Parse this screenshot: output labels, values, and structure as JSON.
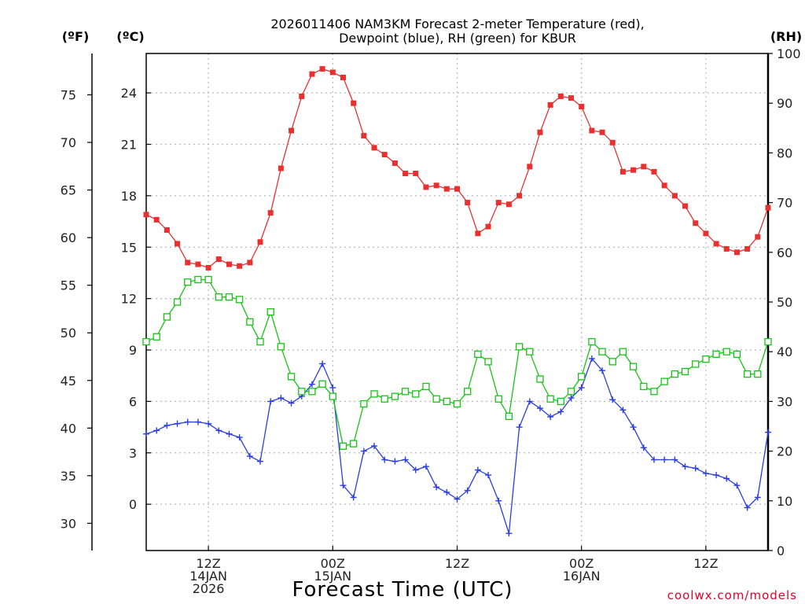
{
  "title": {
    "line1": "2026011406 NAM3KM Forecast 2-meter Temperature (red),",
    "line2": "Dewpoint (blue), RH (green) for KBUR"
  },
  "axis_units": {
    "fahrenheit": "(ºF)",
    "celsius": "(ºC)",
    "rh": "(RH)"
  },
  "xlabel": "Forecast Time (UTC)",
  "credit": "coolwx.com/models",
  "colors": {
    "temperature": "#e83030",
    "dewpoint": "#2a3ee0",
    "rh": "#16c416"
  },
  "chart_data": {
    "type": "line",
    "title": "2026011406 NAM3KM Forecast 2-meter Temperature (red), Dewpoint (blue), RH (green) for KBUR",
    "xlabel": "Forecast Time (UTC)",
    "x_units": "hours from 2026-01-14 06Z",
    "x": [
      0,
      1,
      2,
      3,
      4,
      5,
      6,
      7,
      8,
      9,
      10,
      11,
      12,
      13,
      14,
      15,
      16,
      17,
      18,
      19,
      20,
      21,
      22,
      23,
      24,
      25,
      26,
      27,
      28,
      29,
      30,
      31,
      32,
      33,
      34,
      35,
      36,
      37,
      38,
      39,
      40,
      41,
      42,
      43,
      44,
      45,
      46,
      47,
      48,
      49,
      50,
      51,
      52,
      53,
      54,
      55,
      56,
      57,
      58,
      59,
      60
    ],
    "xlim": [
      0,
      60
    ],
    "x_ticks": [
      {
        "x": 6,
        "label": [
          "12Z",
          "14JAN",
          "2026"
        ]
      },
      {
        "x": 18,
        "label": [
          "00Z",
          "15JAN"
        ]
      },
      {
        "x": 30,
        "label": [
          "12Z"
        ]
      },
      {
        "x": 42,
        "label": [
          "00Z",
          "16JAN"
        ]
      },
      {
        "x": 54,
        "label": [
          "12Z"
        ]
      }
    ],
    "celsius_axis": {
      "ylim": [
        -2.7,
        26.3
      ],
      "ticks": [
        0,
        3,
        6,
        9,
        12,
        15,
        18,
        21,
        24
      ]
    },
    "fahrenheit_axis": {
      "ticks": [
        30,
        35,
        40,
        45,
        50,
        55,
        60,
        65,
        70,
        75
      ]
    },
    "rh_axis": {
      "ylim": [
        0,
        100
      ],
      "ticks": [
        0,
        10,
        20,
        30,
        40,
        50,
        60,
        70,
        80,
        90,
        100
      ]
    },
    "grid": true,
    "series": [
      {
        "name": "Temperature",
        "axis": "celsius",
        "marker": "filled-square",
        "values": [
          16.9,
          16.6,
          16.0,
          15.2,
          14.1,
          14.0,
          13.8,
          14.3,
          14.0,
          13.9,
          14.1,
          15.3,
          17.0,
          19.6,
          21.8,
          23.8,
          25.1,
          25.4,
          25.2,
          24.9,
          23.4,
          21.5,
          20.8,
          20.4,
          19.9,
          19.3,
          19.3,
          18.5,
          18.6,
          18.4,
          18.4,
          17.6,
          15.8,
          16.2,
          17.6,
          17.5,
          18.0,
          19.7,
          21.7,
          23.3,
          23.8,
          23.7,
          23.2,
          21.8,
          21.7,
          21.1,
          19.4,
          19.5,
          19.7,
          19.4,
          18.6,
          18.0,
          17.4,
          16.4,
          15.8,
          15.2,
          14.9,
          14.7,
          14.9,
          15.6,
          17.3
        ]
      },
      {
        "name": "Dewpoint",
        "axis": "celsius",
        "marker": "plus",
        "values": [
          4.1,
          4.3,
          4.6,
          4.7,
          4.8,
          4.8,
          4.7,
          4.3,
          4.1,
          3.9,
          2.8,
          2.5,
          6.0,
          6.2,
          5.9,
          6.3,
          7.0,
          8.2,
          6.8,
          1.1,
          0.4,
          3.1,
          3.4,
          2.6,
          2.5,
          2.6,
          2.0,
          2.2,
          1.0,
          0.7,
          0.3,
          0.8,
          2.0,
          1.7,
          0.2,
          -1.7,
          4.5,
          6.0,
          5.6,
          5.1,
          5.4,
          6.2,
          6.8,
          8.5,
          7.8,
          6.1,
          5.5,
          4.5,
          3.3,
          2.6,
          2.6,
          2.6,
          2.2,
          2.1,
          1.8,
          1.7,
          1.5,
          1.1,
          -0.2,
          0.4,
          4.2
        ]
      },
      {
        "name": "RH",
        "axis": "rh",
        "marker": "open-square",
        "values": [
          42,
          43,
          47,
          50,
          54,
          54.5,
          54.5,
          51,
          51,
          50.5,
          46,
          42,
          48,
          41,
          35,
          32,
          32,
          33.5,
          31,
          21,
          21.5,
          29.5,
          31.5,
          30.5,
          31,
          32,
          31.5,
          33,
          30.5,
          30,
          29.5,
          32,
          39.5,
          38,
          30.5,
          27,
          41,
          40,
          34.5,
          30.5,
          30,
          32,
          35,
          42,
          40,
          38,
          40,
          37,
          33,
          32,
          34,
          35.5,
          36,
          37.5,
          38.5,
          39.5,
          40,
          39.5,
          35.5,
          35.5,
          42
        ]
      }
    ]
  }
}
